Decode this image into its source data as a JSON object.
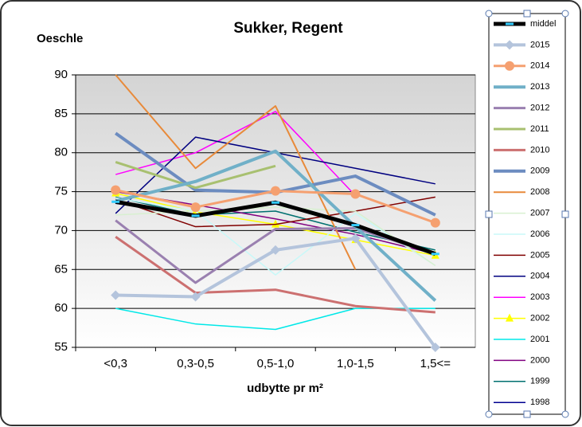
{
  "chart_data": {
    "type": "line",
    "title": "Sukker, Regent",
    "y_label": "Oeschle",
    "x_label": "udbytte pr m²",
    "categories": [
      "<0,3",
      "0,3-0,5",
      "0,5-1,0",
      "1,0-1,5",
      "1,5<="
    ],
    "ylim": [
      55,
      90
    ],
    "yticks": [
      55,
      60,
      65,
      70,
      75,
      80,
      85,
      90
    ],
    "grid": true,
    "legend": "right",
    "series": [
      {
        "name": "middel",
        "color": "#000000",
        "width": 5,
        "marker": "dash",
        "values": [
          73.7,
          71.9,
          73.6,
          70.7,
          67.0
        ]
      },
      {
        "name": "2015",
        "color": "#b4c4dc",
        "width": 4,
        "marker": "diamond",
        "values": [
          61.7,
          61.5,
          67.5,
          69.0,
          55.0
        ]
      },
      {
        "name": "2014",
        "color": "#f5a070",
        "width": 3,
        "marker": "circle",
        "values": [
          75.2,
          73.0,
          75.1,
          74.7,
          71.0
        ]
      },
      {
        "name": "2013",
        "color": "#70b0c8",
        "width": 4,
        "values": [
          73.8,
          76.3,
          80.2,
          70.5,
          61.0
        ]
      },
      {
        "name": "2012",
        "color": "#9a80b0",
        "width": 3,
        "values": [
          71.3,
          63.3,
          70.2,
          70.3,
          67.0
        ]
      },
      {
        "name": "2011",
        "color": "#a8c070",
        "width": 3,
        "values": [
          78.8,
          75.5,
          78.3,
          null,
          null
        ]
      },
      {
        "name": "2010",
        "color": "#cc7070",
        "width": 3,
        "values": [
          69.2,
          62.0,
          62.4,
          60.3,
          59.5
        ]
      },
      {
        "name": "2009",
        "color": "#6c8cc0",
        "width": 4,
        "values": [
          82.5,
          75.2,
          74.9,
          77.0,
          72.0
        ]
      },
      {
        "name": "2008",
        "color": "#e88a3a",
        "width": 2,
        "values": [
          90,
          78.0,
          86.0,
          65.0,
          null
        ]
      },
      {
        "name": "2007",
        "color": "#d8f0d0",
        "width": 1.5,
        "values": [
          72.0,
          72.5,
          73.0,
          72.5,
          65.5
        ]
      },
      {
        "name": "2006",
        "color": "#c8f8f8",
        "width": 1.5,
        "values": [
          74.2,
          72.5,
          64.3,
          72.2,
          65.5
        ]
      },
      {
        "name": "2005",
        "color": "#800000",
        "width": 1.5,
        "values": [
          74.0,
          70.5,
          70.8,
          72.5,
          74.3
        ]
      },
      {
        "name": "2004",
        "color": "#000080",
        "width": 1.5,
        "values": [
          72.2,
          82.0,
          80.0,
          78.0,
          76.0
        ]
      },
      {
        "name": "2003",
        "color": "#ff00ff",
        "width": 1.5,
        "values": [
          77.2,
          80.0,
          85.3,
          74.5,
          null
        ]
      },
      {
        "name": "2002",
        "color": "#ffff00",
        "width": 1.5,
        "marker": "triangle",
        "values": [
          74.8,
          72.4,
          70.8,
          68.8,
          66.8
        ]
      },
      {
        "name": "2001",
        "color": "#00e8e8",
        "width": 1.5,
        "values": [
          60.0,
          58.0,
          57.3,
          60.0,
          60.0
        ]
      },
      {
        "name": "2000",
        "color": "#800080",
        "width": 1.5,
        "values": [
          75.0,
          73.3,
          71.5,
          69.5,
          67.0
        ]
      },
      {
        "name": "1999",
        "color": "#007070",
        "width": 1.5,
        "values": [
          74.3,
          72.0,
          72.5,
          69.8,
          67.5
        ]
      },
      {
        "name": "1998",
        "color": "#000090",
        "width": 1.5,
        "values": [
          73.5,
          72.0,
          73.5,
          70.5,
          67.0
        ]
      }
    ]
  }
}
